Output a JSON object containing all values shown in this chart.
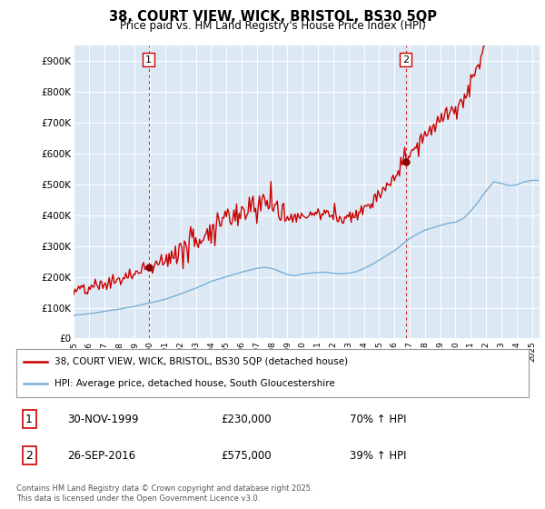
{
  "title": "38, COURT VIEW, WICK, BRISTOL, BS30 5QP",
  "subtitle": "Price paid vs. HM Land Registry's House Price Index (HPI)",
  "ylabel_ticks": [
    "£0",
    "£100K",
    "£200K",
    "£300K",
    "£400K",
    "£500K",
    "£600K",
    "£700K",
    "£800K",
    "£900K"
  ],
  "ytick_values": [
    0,
    100000,
    200000,
    300000,
    400000,
    500000,
    600000,
    700000,
    800000,
    900000
  ],
  "ylim": [
    0,
    950000
  ],
  "xlim_start": 1995.0,
  "xlim_end": 2025.5,
  "sale1_year": 1999.917,
  "sale1_price": 230000,
  "sale2_year": 2016.733,
  "sale2_price": 575000,
  "legend_line1": "38, COURT VIEW, WICK, BRISTOL, BS30 5QP (detached house)",
  "legend_line2": "HPI: Average price, detached house, South Gloucestershire",
  "annotation1_date": "30-NOV-1999",
  "annotation1_price": "£230,000",
  "annotation1_hpi": "70% ↑ HPI",
  "annotation2_date": "26-SEP-2016",
  "annotation2_price": "£575,000",
  "annotation2_hpi": "39% ↑ HPI",
  "footer": "Contains HM Land Registry data © Crown copyright and database right 2025.\nThis data is licensed under the Open Government Licence v3.0.",
  "line_color_property": "#cc0000",
  "line_color_hpi": "#7bafd4",
  "plot_bg_color": "#dce9f5",
  "background_color": "#ffffff",
  "grid_color": "#ffffff",
  "sale_marker_color": "#880000"
}
